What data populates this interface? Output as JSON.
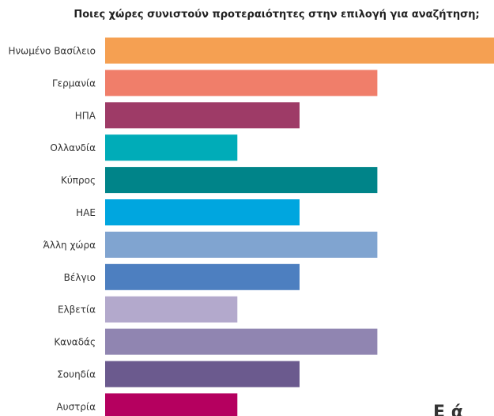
{
  "chart_data": {
    "type": "bar",
    "orientation": "horizontal",
    "title": "Ποιες χώρες συνιστούν προτεραιότητες στην επιλογή για αναζήτηση;",
    "categories": [
      "Ηνωμένο Βασίλειο",
      "Γερμανία",
      "ΗΠΑ",
      "Ολλανδία",
      "Κύπρος",
      "ΗΑΕ",
      "Άλλη χώρα",
      "Βέλγιο",
      "Ελβετία",
      "Καναδάς",
      "Σουηδία",
      "Αυστρία"
    ],
    "values": [
      5,
      3.5,
      2.5,
      1.7,
      3.5,
      2.5,
      3.5,
      2.5,
      1.7,
      3.5,
      2.5,
      1.7
    ],
    "colors": [
      "#F5A052",
      "#F07E6A",
      "#9E3B67",
      "#00ACB8",
      "#008489",
      "#00A6DF",
      "#80A4D0",
      "#4D7FC0",
      "#B3A9CC",
      "#9085B1",
      "#6B5A8E",
      "#B5005F"
    ],
    "xlim": [
      0,
      5
    ],
    "xlabel": "",
    "ylabel": "",
    "grid": false,
    "legend": "none"
  },
  "corner_text": "Ε ά"
}
